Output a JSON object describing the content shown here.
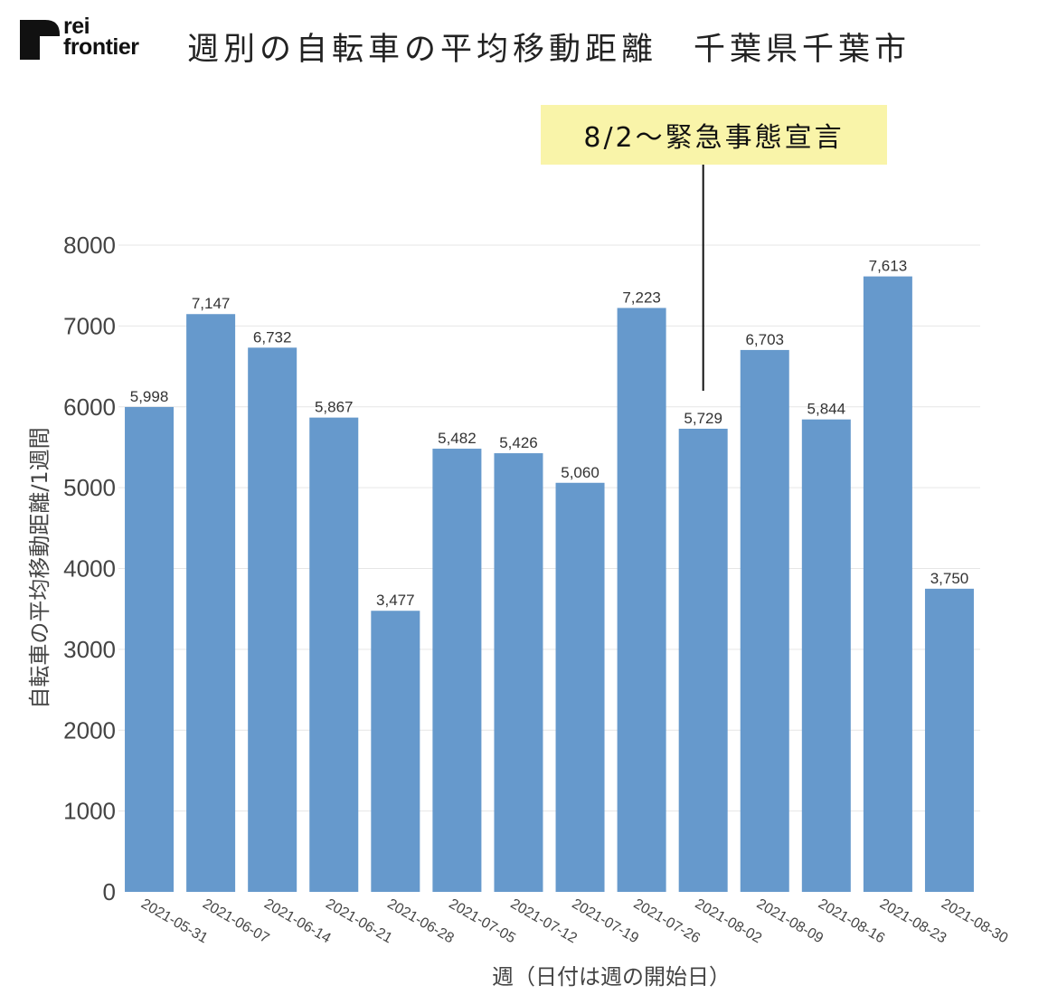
{
  "logo": {
    "line1": "rei",
    "line2": "frontier"
  },
  "header": {
    "title": "週別の自転車の平均移動距離　千葉県千葉市"
  },
  "annotation": {
    "label": "8/2～緊急事態宣言",
    "category": "2021-08-02"
  },
  "colors": {
    "bar": "#6699cc",
    "grid": "#e6e6e6",
    "tick_text": "#444444",
    "label_text": "#333333",
    "annotation_bg": "#f9f4a9",
    "annotation_line": "#111111"
  },
  "chart_data": {
    "type": "bar",
    "title": "週別の自転車の平均移動距離　千葉県千葉市",
    "xlabel": "週（日付は週の開始日）",
    "ylabel": "自転車の平均移動距離/1週間",
    "ylim": [
      0,
      8000
    ],
    "yticks": [
      0,
      1000,
      2000,
      3000,
      4000,
      5000,
      6000,
      7000,
      8000
    ],
    "grid": true,
    "categories": [
      "2021-05-31",
      "2021-06-07",
      "2021-06-14",
      "2021-06-21",
      "2021-06-28",
      "2021-07-05",
      "2021-07-12",
      "2021-07-19",
      "2021-07-26",
      "2021-08-02",
      "2021-08-09",
      "2021-08-16",
      "2021-08-23",
      "2021-08-30"
    ],
    "values": [
      5998,
      7147,
      6732,
      5867,
      3477,
      5482,
      5426,
      5060,
      7223,
      5729,
      6703,
      5844,
      7613,
      3750
    ],
    "value_labels": [
      "5,998",
      "7,147",
      "6,732",
      "5,867",
      "3,477",
      "5,482",
      "5,426",
      "5,060",
      "7,223",
      "5,729",
      "6,703",
      "5,844",
      "7,613",
      "3,750"
    ]
  }
}
